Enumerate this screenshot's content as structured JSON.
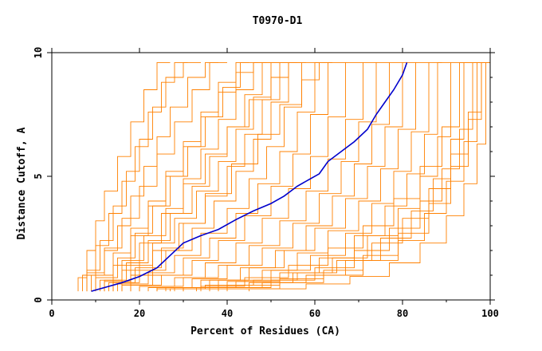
{
  "chart_data": {
    "type": "line",
    "title": "T0970-D1",
    "xlabel": "Percent of Residues (CA)",
    "ylabel": "Distance Cutoff, A",
    "xlim": [
      0,
      100
    ],
    "ylim": [
      0,
      10
    ],
    "x_ticks": [
      0,
      20,
      40,
      60,
      80,
      100
    ],
    "y_ticks": [
      0,
      5,
      10
    ],
    "grid": false,
    "legend": "none",
    "colors": {
      "background_series": "#ff8000",
      "highlight": "#0000cc",
      "axes": "#000000"
    },
    "highlight_series": {
      "x": [
        9,
        12,
        16,
        20,
        24,
        27,
        30,
        34,
        38,
        42,
        46,
        50,
        53,
        56,
        59,
        61,
        63,
        66,
        69,
        72,
        74,
        76,
        78,
        80,
        81
      ],
      "y": [
        0.35,
        0.5,
        0.7,
        0.95,
        1.3,
        1.8,
        2.3,
        2.6,
        2.85,
        3.25,
        3.6,
        3.9,
        4.2,
        4.6,
        4.9,
        5.1,
        5.6,
        6.0,
        6.4,
        6.9,
        7.5,
        8.0,
        8.5,
        9.1,
        9.6
      ]
    },
    "background_series": [
      {
        "x": [
          6,
          8,
          10,
          12,
          15,
          18,
          21,
          24,
          27
        ],
        "y": [
          0.35,
          0.9,
          2.0,
          3.2,
          4.4,
          5.8,
          7.2,
          8.5,
          9.6
        ]
      },
      {
        "x": [
          7,
          10,
          13,
          16,
          19,
          22,
          25,
          28,
          31
        ],
        "y": [
          0.35,
          1.0,
          2.2,
          3.5,
          4.8,
          6.2,
          7.6,
          8.8,
          9.6
        ]
      },
      {
        "x": [
          8,
          11,
          14,
          17,
          20,
          23,
          26,
          30,
          34
        ],
        "y": [
          0.35,
          1.2,
          2.4,
          3.8,
          5.2,
          6.5,
          7.8,
          9.0,
          9.6
        ]
      },
      {
        "x": [
          8,
          12,
          15,
          18,
          21,
          24,
          27,
          31,
          35,
          38
        ],
        "y": [
          0.35,
          1.1,
          2.0,
          3.0,
          4.2,
          5.4,
          6.6,
          7.8,
          9.0,
          9.6
        ]
      },
      {
        "x": [
          9,
          12,
          16,
          20,
          24,
          28,
          32,
          36,
          40
        ],
        "y": [
          0.35,
          1.0,
          2.1,
          3.3,
          4.6,
          5.9,
          7.2,
          8.5,
          9.6
        ]
      },
      {
        "x": [
          10,
          14,
          18,
          22,
          26,
          30,
          34,
          38,
          42,
          45
        ],
        "y": [
          0.35,
          1.0,
          1.9,
          2.9,
          4.0,
          5.2,
          6.4,
          7.6,
          8.8,
          9.6
        ]
      },
      {
        "x": [
          10,
          15,
          19,
          23,
          27,
          31,
          35,
          39,
          43,
          47
        ],
        "y": [
          0.35,
          0.9,
          1.7,
          2.7,
          3.8,
          5.0,
          6.2,
          7.4,
          8.6,
          9.6
        ]
      },
      {
        "x": [
          11,
          16,
          21,
          26,
          30,
          34,
          38,
          42,
          46,
          50
        ],
        "y": [
          0.35,
          0.8,
          1.6,
          2.6,
          3.7,
          4.9,
          6.1,
          7.3,
          8.5,
          9.6
        ]
      },
      {
        "x": [
          12,
          17,
          22,
          27,
          32,
          36,
          40,
          44,
          48,
          52
        ],
        "y": [
          0.35,
          0.8,
          1.5,
          2.4,
          3.5,
          4.6,
          5.8,
          7.0,
          8.3,
          9.6
        ]
      },
      {
        "x": [
          12,
          18,
          23,
          28,
          33,
          38,
          42,
          46,
          50,
          54
        ],
        "y": [
          0.35,
          0.75,
          1.4,
          2.3,
          3.3,
          4.4,
          5.6,
          6.9,
          8.2,
          9.6
        ]
      },
      {
        "x": [
          13,
          19,
          25,
          30,
          35,
          40,
          44,
          48,
          52,
          56
        ],
        "y": [
          0.35,
          0.7,
          1.3,
          2.1,
          3.1,
          4.2,
          5.4,
          6.7,
          8.1,
          9.6
        ]
      },
      {
        "x": [
          14,
          20,
          26,
          32,
          37,
          42,
          46,
          50,
          54,
          58
        ],
        "y": [
          0.35,
          0.7,
          1.2,
          2.0,
          2.9,
          4.0,
          5.2,
          6.5,
          8.0,
          9.6
        ]
      },
      {
        "x": [
          15,
          22,
          28,
          34,
          40,
          45,
          49,
          53,
          57,
          61
        ],
        "y": [
          0.35,
          0.65,
          1.1,
          1.8,
          2.7,
          3.7,
          4.9,
          6.2,
          7.8,
          9.6
        ]
      },
      {
        "x": [
          16,
          23,
          30,
          36,
          42,
          47,
          52,
          56,
          60,
          64
        ],
        "y": [
          0.35,
          0.6,
          1.0,
          1.7,
          2.5,
          3.5,
          4.7,
          6.0,
          7.6,
          9.6
        ]
      },
      {
        "x": [
          18,
          25,
          32,
          38,
          44,
          50,
          55,
          59,
          63,
          67
        ],
        "y": [
          0.35,
          0.6,
          1.0,
          1.6,
          2.4,
          3.4,
          4.6,
          5.9,
          7.5,
          9.6
        ]
      },
      {
        "x": [
          20,
          28,
          35,
          42,
          48,
          54,
          59,
          63,
          67,
          71
        ],
        "y": [
          0.35,
          0.55,
          0.9,
          1.5,
          2.3,
          3.3,
          4.5,
          5.8,
          7.4,
          9.6
        ]
      },
      {
        "x": [
          20,
          30,
          38,
          45,
          52,
          58,
          63,
          67,
          71,
          74
        ],
        "y": [
          0.35,
          0.55,
          0.9,
          1.4,
          2.2,
          3.2,
          4.4,
          5.7,
          7.3,
          9.6
        ]
      },
      {
        "x": [
          22,
          32,
          40,
          48,
          55,
          61,
          66,
          70,
          74,
          77
        ],
        "y": [
          0.35,
          0.5,
          0.85,
          1.4,
          2.1,
          3.1,
          4.3,
          5.6,
          7.2,
          9.6
        ]
      },
      {
        "x": [
          24,
          34,
          43,
          51,
          58,
          64,
          69,
          73,
          77,
          80
        ],
        "y": [
          0.35,
          0.5,
          0.8,
          1.3,
          2.0,
          3.0,
          4.2,
          5.5,
          7.1,
          9.6
        ]
      },
      {
        "x": [
          26,
          36,
          45,
          53,
          60,
          67,
          72,
          76,
          80,
          83
        ],
        "y": [
          0.35,
          0.5,
          0.8,
          1.3,
          2.0,
          2.9,
          4.1,
          5.4,
          7.0,
          9.6
        ]
      },
      {
        "x": [
          28,
          38,
          48,
          56,
          63,
          70,
          75,
          79,
          83,
          86
        ],
        "y": [
          0.35,
          0.5,
          0.8,
          1.2,
          1.9,
          2.8,
          4.0,
          5.3,
          6.9,
          9.6
        ]
      },
      {
        "x": [
          30,
          40,
          50,
          59,
          67,
          73,
          78,
          82,
          86,
          89
        ],
        "y": [
          0.35,
          0.5,
          0.75,
          1.2,
          1.8,
          2.7,
          3.9,
          5.2,
          6.8,
          9.6
        ]
      },
      {
        "x": [
          30,
          42,
          52,
          61,
          69,
          76,
          81,
          85,
          88,
          91
        ],
        "y": [
          0.35,
          0.5,
          0.75,
          1.1,
          1.7,
          2.6,
          3.8,
          5.1,
          6.7,
          9.6
        ]
      },
      {
        "x": [
          33,
          45,
          55,
          64,
          72,
          79,
          84,
          88,
          91,
          94
        ],
        "y": [
          0.35,
          0.5,
          0.7,
          1.1,
          1.7,
          2.6,
          3.7,
          5.0,
          6.6,
          9.6
        ]
      },
      {
        "x": [
          36,
          48,
          58,
          67,
          75,
          82,
          87,
          91,
          94,
          97
        ],
        "y": [
          0.35,
          0.5,
          0.7,
          1.0,
          1.6,
          2.5,
          3.6,
          4.9,
          6.5,
          9.6
        ]
      },
      {
        "x": [
          40,
          52,
          62,
          71,
          79,
          85,
          90,
          94,
          97,
          99
        ],
        "y": [
          0.35,
          0.45,
          0.7,
          1.0,
          1.6,
          2.4,
          3.5,
          4.8,
          6.4,
          9.6
        ]
      },
      {
        "x": [
          45,
          58,
          68,
          77,
          84,
          90,
          94,
          97,
          99,
          100
        ],
        "y": [
          0.35,
          0.45,
          0.65,
          0.95,
          1.5,
          2.3,
          3.4,
          4.7,
          6.3,
          9.6
        ]
      },
      {
        "x": [
          24,
          35,
          46,
          56,
          65,
          73,
          80,
          86,
          91,
          95,
          98,
          100
        ],
        "y": [
          0.35,
          0.45,
          0.6,
          0.8,
          1.1,
          1.6,
          2.3,
          3.3,
          4.5,
          5.9,
          7.6,
          9.6
        ]
      },
      {
        "x": [
          27,
          40,
          52,
          62,
          71,
          79,
          86,
          91,
          95,
          98,
          100
        ],
        "y": [
          0.35,
          0.45,
          0.6,
          0.85,
          1.2,
          1.8,
          2.7,
          3.9,
          5.4,
          7.3,
          9.6
        ]
      },
      {
        "x": [
          14,
          18,
          22,
          26,
          30,
          34,
          38,
          42,
          46,
          49
        ],
        "y": [
          0.35,
          1.4,
          2.6,
          3.8,
          5.0,
          6.2,
          7.4,
          8.4,
          9.2,
          9.6
        ]
      },
      {
        "x": [
          16,
          20,
          25,
          30,
          35,
          40,
          45,
          50,
          54,
          57
        ],
        "y": [
          0.35,
          1.2,
          2.3,
          3.5,
          4.7,
          5.9,
          7.0,
          8.1,
          9.0,
          9.6
        ]
      },
      {
        "x": [
          18,
          23,
          29,
          35,
          41,
          47,
          52,
          57,
          61,
          64
        ],
        "y": [
          0.35,
          1.0,
          2.0,
          3.1,
          4.3,
          5.5,
          6.7,
          7.9,
          8.9,
          9.6
        ]
      },
      {
        "x": [
          34,
          44,
          54,
          63,
          71,
          78,
          84,
          89,
          93,
          96
        ],
        "y": [
          0.35,
          0.55,
          0.9,
          1.4,
          2.1,
          3.0,
          4.1,
          5.4,
          7.0,
          9.6
        ]
      },
      {
        "x": [
          38,
          50,
          60,
          69,
          77,
          84,
          89,
          93,
          96,
          98
        ],
        "y": [
          0.35,
          0.5,
          0.8,
          1.3,
          2.0,
          2.9,
          4.0,
          5.3,
          6.9,
          9.6
        ]
      }
    ]
  }
}
